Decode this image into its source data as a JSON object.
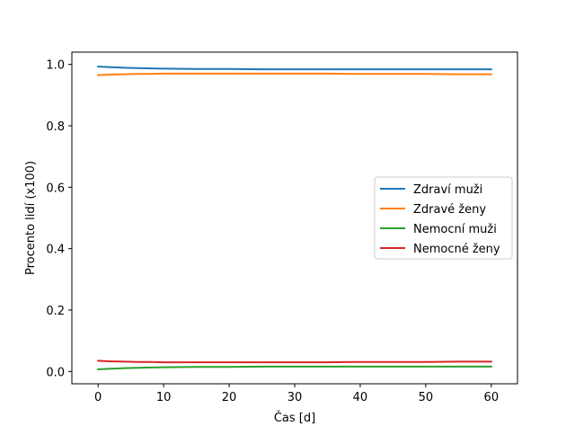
{
  "chart_data": {
    "type": "line",
    "title": "",
    "xlabel": "Čas [d]",
    "ylabel": "Procento lidí (x100)",
    "xlim": [
      -4,
      64
    ],
    "ylim": [
      -0.04,
      1.04
    ],
    "x_ticks": [
      0,
      10,
      20,
      30,
      40,
      50,
      60
    ],
    "y_ticks": [
      0.0,
      0.2,
      0.4,
      0.6,
      0.8,
      1.0
    ],
    "x_tick_labels": [
      "0",
      "10",
      "20",
      "30",
      "40",
      "50",
      "60"
    ],
    "y_tick_labels": [
      "0.0",
      "0.2",
      "0.4",
      "0.6",
      "0.8",
      "1.0"
    ],
    "grid": false,
    "legend_position": "center-right",
    "x": [
      0,
      2,
      4,
      6,
      8,
      10,
      15,
      20,
      25,
      30,
      35,
      40,
      45,
      50,
      55,
      60
    ],
    "series": [
      {
        "name": "Zdraví muži",
        "color": "#1f77b4",
        "values": [
          0.993,
          0.991,
          0.989,
          0.988,
          0.987,
          0.986,
          0.985,
          0.985,
          0.984,
          0.984,
          0.984,
          0.984,
          0.984,
          0.984,
          0.984,
          0.984
        ]
      },
      {
        "name": "Zdravé ženy",
        "color": "#ff7f0e",
        "values": [
          0.965,
          0.967,
          0.968,
          0.969,
          0.969,
          0.97,
          0.97,
          0.97,
          0.97,
          0.97,
          0.97,
          0.969,
          0.969,
          0.969,
          0.968,
          0.968
        ]
      },
      {
        "name": "Nemocní muži",
        "color": "#2ca02c",
        "values": [
          0.007,
          0.009,
          0.011,
          0.012,
          0.013,
          0.014,
          0.015,
          0.015,
          0.016,
          0.016,
          0.016,
          0.016,
          0.016,
          0.016,
          0.016,
          0.016
        ]
      },
      {
        "name": "Nemocné ženy",
        "color": "#d62728",
        "values": [
          0.035,
          0.033,
          0.032,
          0.031,
          0.031,
          0.03,
          0.03,
          0.03,
          0.03,
          0.03,
          0.03,
          0.031,
          0.031,
          0.031,
          0.032,
          0.032
        ]
      }
    ]
  }
}
